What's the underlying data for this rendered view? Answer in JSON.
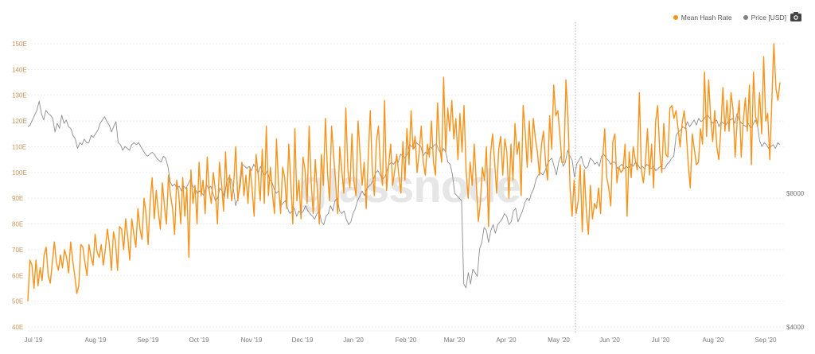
{
  "legend": {
    "items": [
      {
        "label": "Mean Hash Rate",
        "color": "#f7931a"
      },
      {
        "label": "Price [USD]",
        "color": "#808080"
      }
    ],
    "export_icon": "camera-icon"
  },
  "watermark": "glassnode",
  "colors": {
    "hash_rate": "#f7931a",
    "price": "#8c8c8c",
    "grid": "#eeeeee",
    "left_axis_text": "#c9955a",
    "right_axis_text": "#777777",
    "x_axis_text": "#777777",
    "crosshair": "#999999",
    "watermark": "#e6e6e6"
  },
  "chart_data": {
    "type": "line",
    "title": "",
    "xlabel": "",
    "ylabel": "Mean Hash Rate",
    "y2label": "Price [USD]",
    "grid": true,
    "legend_position": "top-right",
    "ylim": [
      40,
      150
    ],
    "y_ticks": [
      "40E",
      "50E",
      "60E",
      "70E",
      "80E",
      "90E",
      "100E",
      "110E",
      "120E",
      "130E",
      "140E",
      "150E"
    ],
    "y2_scale": "log",
    "y2_ticks": [
      "$4000",
      "$8000"
    ],
    "x_ticks": [
      "Jul '19",
      "Aug '19",
      "Sep '19",
      "Oct '19",
      "Nov '19",
      "Dec '19",
      "Jan '20",
      "Feb '20",
      "Mar '20",
      "Apr '20",
      "May '20",
      "Jun '20",
      "Jul '20",
      "Aug '20",
      "Sep '20"
    ],
    "crosshair_x_label": "May '20 (~May 12)",
    "series": [
      {
        "name": "Mean Hash Rate",
        "axis": "left",
        "unit": "EH/s",
        "values": [
          50,
          66,
          64,
          55,
          66,
          56,
          63,
          58,
          68,
          71,
          60,
          57,
          65,
          73,
          65,
          62,
          68,
          63,
          70,
          67,
          61,
          73,
          66,
          60,
          53,
          56,
          72,
          71,
          65,
          60,
          72,
          67,
          64,
          76,
          69,
          67,
          72,
          64,
          70,
          78,
          72,
          62,
          77,
          73,
          62,
          79,
          78,
          70,
          82,
          75,
          66,
          82,
          76,
          71,
          86,
          78,
          74,
          90,
          84,
          72,
          89,
          98,
          82,
          93,
          85,
          78,
          96,
          87,
          80,
          99,
          91,
          86,
          76,
          97,
          92,
          80,
          98,
          83,
          94,
          67,
          101,
          88,
          95,
          80,
          104,
          91,
          97,
          84,
          106,
          93,
          88,
          100,
          93,
          80,
          104,
          96,
          85,
          108,
          90,
          99,
          89,
          96,
          110,
          89,
          96,
          104,
          91,
          99,
          88,
          102,
          94,
          83,
          107,
          99,
          89,
          109,
          88,
          118,
          91,
          102,
          92,
          84,
          113,
          95,
          84,
          102,
          98,
          86,
          111,
          96,
          80,
          117,
          89,
          97,
          82,
          106,
          101,
          88,
          118,
          96,
          84,
          105,
          93,
          80,
          107,
          95,
          121,
          100,
          89,
          118,
          107,
          96,
          84,
          110,
          101,
          92,
          125,
          101,
          94,
          115,
          96,
          91,
          120,
          107,
          95,
          104,
          86,
          106,
          124,
          101,
          91,
          112,
          118,
          102,
          95,
          128,
          93,
          103,
          111,
          95,
          101,
          107,
          99,
          92,
          112,
          97,
          117,
          103,
          124,
          109,
          114,
          100,
          108,
          118,
          104,
          99,
          111,
          106,
          120,
          104,
          99,
          127,
          111,
          104,
          137,
          108,
          125,
          116,
          128,
          113,
          121,
          105,
          123,
          108,
          126,
          101,
          90,
          104,
          95,
          111,
          96,
          81,
          88,
          102,
          97,
          110,
          79,
          107,
          115,
          104,
          92,
          109,
          114,
          99,
          113,
          108,
          90,
          111,
          97,
          119,
          107,
          112,
          91,
          126,
          116,
          102,
          120,
          104,
          121,
          113,
          108,
          99,
          111,
          116,
          104,
          97,
          122,
          109,
          134,
          122,
          124,
          115,
          104,
          104,
          136,
          121,
          94,
          83,
          97,
          84,
          89,
          103,
          77,
          101,
          85,
          76,
          95,
          82,
          88,
          86,
          94,
          84,
          105,
          117,
          98,
          94,
          87,
          112,
          115,
          96,
          102,
          100,
          101,
          111,
          83,
          108,
          98,
          110,
          105,
          101,
          131,
          101,
          96,
          104,
          117,
          99,
          111,
          94,
          120,
          126,
          108,
          100,
          119,
          107,
          106,
          125,
          126,
          121,
          124,
          117,
          110,
          119,
          124,
          116,
          103,
          94,
          115,
          109,
          103,
          104,
          117,
          111,
          139,
          114,
          136,
          121,
          112,
          124,
          110,
          105,
          117,
          133,
          116,
          128,
          116,
          131,
          124,
          106,
          120,
          128,
          106,
          120,
          129,
          116,
          134,
          103,
          139,
          122,
          118,
          131,
          115,
          145,
          120,
          123,
          105,
          128,
          150,
          133,
          128,
          135
        ]
      },
      {
        "name": "Price [USD]",
        "axis": "right",
        "unit": "USD",
        "values": [
          11300,
          11400,
          11700,
          12000,
          12300,
          12900,
          12100,
          11700,
          12300,
          12100,
          12000,
          11800,
          11000,
          11500,
          11200,
          12000,
          11500,
          11700,
          11300,
          11200,
          10800,
          10600,
          10100,
          10400,
          10300,
          10600,
          10400,
          10400,
          10800,
          10700,
          10900,
          11100,
          11500,
          11700,
          11900,
          11600,
          11400,
          11000,
          11300,
          11600,
          10400,
          10300,
          10000,
          10200,
          10100,
          10000,
          10300,
          10400,
          10300,
          10400,
          10200,
          10000,
          9800,
          9700,
          9800,
          9900,
          9800,
          9600,
          9500,
          9400,
          9700,
          9600,
          9200,
          8500,
          8300,
          8400,
          8200,
          8300,
          8100,
          8300,
          8200,
          8400,
          8600,
          8300,
          8200,
          8000,
          8100,
          8000,
          7900,
          8400,
          8200,
          8300,
          8000,
          7700,
          7800,
          8200,
          8100,
          7800,
          8500,
          8700,
          8600,
          8200,
          7500,
          7800,
          8300,
          9300,
          9200,
          9100,
          9200,
          9000,
          9300,
          9100,
          8900,
          9200,
          8900,
          8800,
          9000,
          8600,
          8500,
          8200,
          8000,
          8100,
          7500,
          7600,
          7700,
          7400,
          7200,
          7300,
          7400,
          7100,
          7300,
          7200,
          7300,
          7500,
          7300,
          7200,
          7100,
          7000,
          7200,
          7300,
          6900,
          6800,
          7100,
          7200,
          7500,
          7300,
          7700,
          7800,
          7300,
          7200,
          7300,
          7000,
          6800,
          6900,
          7200,
          7400,
          7700,
          7900,
          8100,
          7900,
          8200,
          8300,
          8400,
          8600,
          8900,
          9000,
          8800,
          8600,
          8700,
          9000,
          9300,
          9400,
          9300,
          9500,
          9400,
          9800,
          9700,
          9600,
          9800,
          10300,
          10200,
          10100,
          10400,
          10300,
          10200,
          9700,
          9900,
          9800,
          10200,
          10100,
          10300,
          10300,
          10000,
          9800,
          10100,
          9900,
          9400,
          9300,
          8800,
          8000,
          7900,
          7800,
          7700,
          5000,
          4900,
          5300,
          5000,
          5400,
          5300,
          5200,
          6000,
          6200,
          6700,
          6600,
          6200,
          6600,
          6800,
          6500,
          6800,
          6900,
          7000,
          7200,
          7100,
          6800,
          6900,
          7300,
          7400,
          6900,
          7100,
          7300,
          7600,
          7800,
          7700,
          8000,
          8200,
          8600,
          8800,
          8900,
          8800,
          9000,
          9300,
          9500,
          9600,
          9200,
          8800,
          9400,
          9700,
          9200,
          9400,
          10000,
          9700,
          9500,
          8700,
          9300,
          9500,
          9700,
          9300,
          9100,
          9200,
          9600,
          9500,
          9300,
          9400,
          9200,
          9700,
          9800,
          9600,
          9500,
          9300,
          9400,
          9400,
          9100,
          9200,
          9300,
          9100,
          9200,
          9100,
          9300,
          9200,
          9400,
          9300,
          9100,
          9200,
          9100,
          9300,
          9200,
          9100,
          9200,
          9000,
          9100,
          9200,
          9100,
          9100,
          9300,
          9400,
          9600,
          9700,
          10800,
          11000,
          11100,
          11300,
          11200,
          11600,
          11300,
          11500,
          11700,
          11400,
          11800,
          11600,
          11700,
          11900,
          12000,
          11800,
          11500,
          11600,
          11700,
          11300,
          11600,
          11500,
          11400,
          11600,
          11700,
          11800,
          11500,
          12100,
          11700,
          11500,
          11400,
          11300,
          11500,
          11200,
          11400,
          11700,
          11400,
          10500,
          10200,
          10400,
          10300,
          10100,
          10200,
          10300,
          10100,
          10400,
          10300
        ]
      }
    ]
  }
}
